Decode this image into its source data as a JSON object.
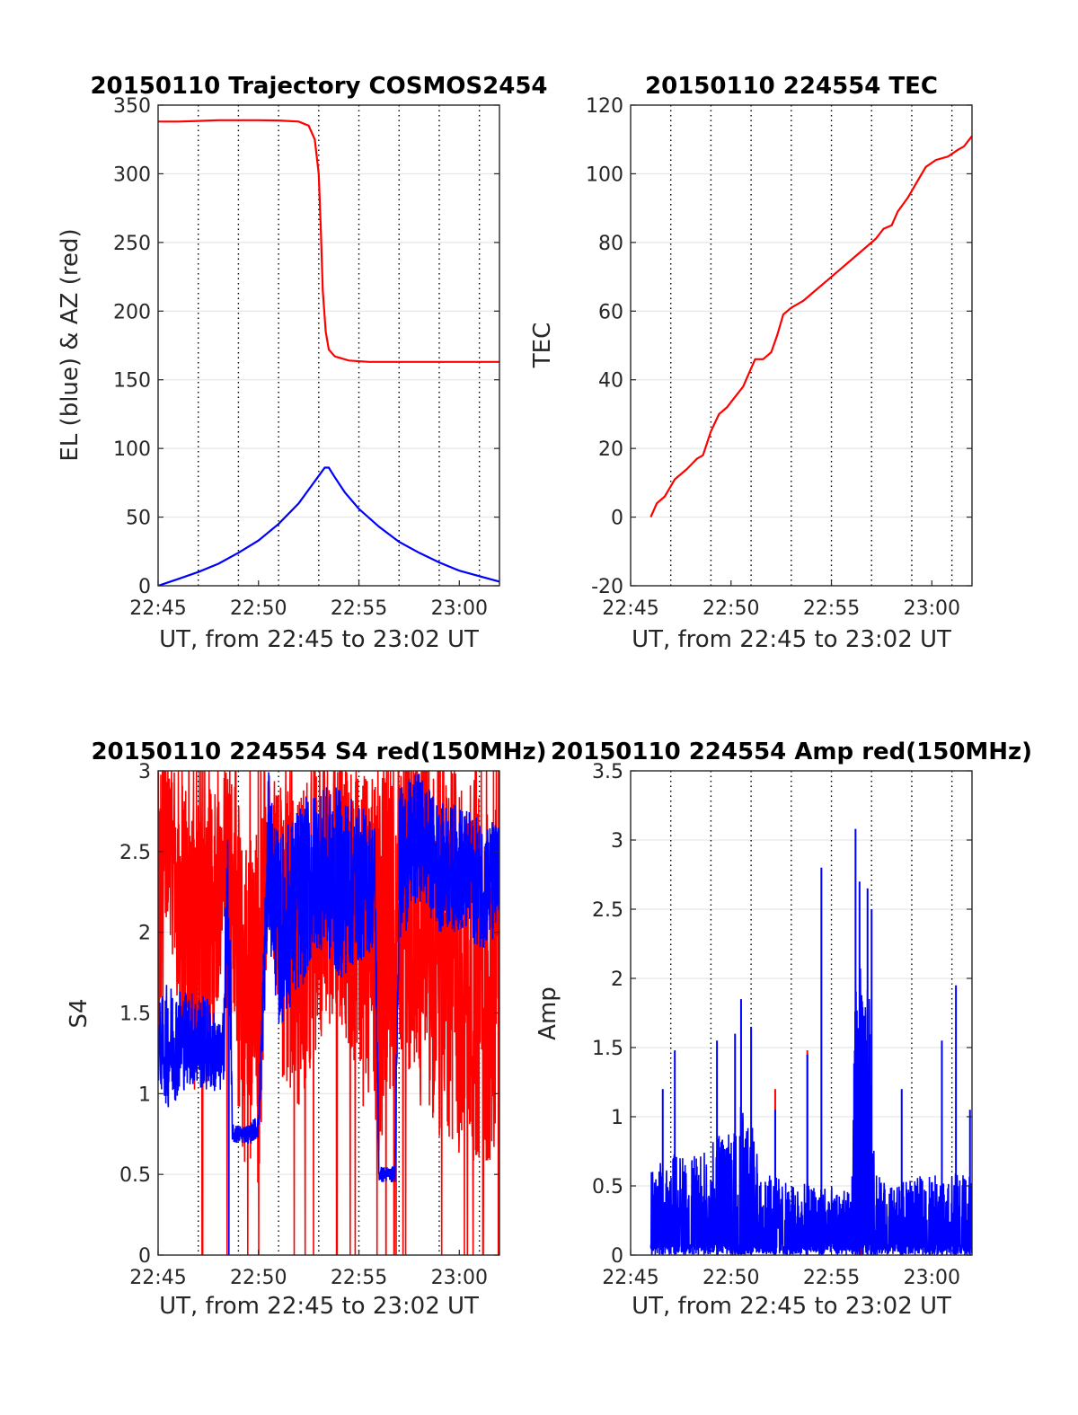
{
  "figure": {
    "background": "#ffffff",
    "grid_color": "#000000",
    "axis_color": "#262626"
  },
  "chart_data": [
    {
      "id": "trajectory",
      "type": "line",
      "title": "20150110 Trajectory COSMOS2454",
      "xlabel": "UT, from 22:45 to 23:02 UT",
      "ylabel": "EL (blue) & AZ (red)",
      "xlim_minutes": [
        0,
        17
      ],
      "xticks": [
        {
          "label": "22:45",
          "minute": 0
        },
        {
          "label": "22:50",
          "minute": 5
        },
        {
          "label": "22:55",
          "minute": 10
        },
        {
          "label": "23:00",
          "minute": 15
        }
      ],
      "vgrid_minutes": [
        2,
        4,
        6,
        8,
        10,
        12,
        14,
        16
      ],
      "ylim": [
        0,
        350
      ],
      "yticks": [
        0,
        50,
        100,
        150,
        200,
        250,
        300,
        350
      ],
      "series": [
        {
          "color": "#ff0000",
          "points": [
            [
              0.0,
              338
            ],
            [
              1.0,
              338
            ],
            [
              2.0,
              338.5
            ],
            [
              3.0,
              339
            ],
            [
              4.0,
              339
            ],
            [
              5.0,
              339
            ],
            [
              6.0,
              338.8
            ],
            [
              7.0,
              338
            ],
            [
              7.5,
              335
            ],
            [
              7.8,
              325
            ],
            [
              8.0,
              300
            ],
            [
              8.1,
              260
            ],
            [
              8.2,
              215
            ],
            [
              8.35,
              185
            ],
            [
              8.5,
              172
            ],
            [
              8.8,
              167
            ],
            [
              9.5,
              164
            ],
            [
              10.5,
              163
            ],
            [
              12.0,
              163
            ],
            [
              14.0,
              163
            ],
            [
              17.0,
              163
            ]
          ]
        },
        {
          "color": "#0000ff",
          "points": [
            [
              0.0,
              0
            ],
            [
              1.0,
              5
            ],
            [
              2.0,
              10
            ],
            [
              3.0,
              16
            ],
            [
              4.0,
              24
            ],
            [
              5.0,
              33
            ],
            [
              6.0,
              45
            ],
            [
              7.0,
              60
            ],
            [
              7.6,
              72
            ],
            [
              8.0,
              80
            ],
            [
              8.3,
              86
            ],
            [
              8.5,
              86
            ],
            [
              8.8,
              79
            ],
            [
              9.3,
              68
            ],
            [
              10.0,
              56
            ],
            [
              11.0,
              43
            ],
            [
              12.0,
              32
            ],
            [
              13.0,
              24
            ],
            [
              14.0,
              17
            ],
            [
              15.0,
              11
            ],
            [
              16.0,
              7
            ],
            [
              17.0,
              3
            ]
          ]
        }
      ]
    },
    {
      "id": "tec",
      "type": "line",
      "title": "20150110 224554 TEC",
      "xlabel": "UT, from 22:45 to 23:02 UT",
      "ylabel": "TEC",
      "xlim_minutes": [
        0,
        17
      ],
      "xticks": [
        {
          "label": "22:45",
          "minute": 0
        },
        {
          "label": "22:50",
          "minute": 5
        },
        {
          "label": "22:55",
          "minute": 10
        },
        {
          "label": "23:00",
          "minute": 15
        }
      ],
      "vgrid_minutes": [
        2,
        4,
        6,
        8,
        10,
        12,
        14,
        16
      ],
      "ylim": [
        -20,
        120
      ],
      "yticks": [
        -20,
        0,
        20,
        40,
        60,
        80,
        100,
        120
      ],
      "series": [
        {
          "color": "#ff0000",
          "points": [
            [
              1.0,
              0
            ],
            [
              1.3,
              4
            ],
            [
              1.7,
              6
            ],
            [
              2.2,
              11
            ],
            [
              2.8,
              14
            ],
            [
              3.3,
              17
            ],
            [
              3.6,
              18
            ],
            [
              4.0,
              25
            ],
            [
              4.4,
              30
            ],
            [
              4.8,
              32
            ],
            [
              5.2,
              35
            ],
            [
              5.6,
              38
            ],
            [
              5.9,
              42
            ],
            [
              6.2,
              46
            ],
            [
              6.6,
              46
            ],
            [
              7.0,
              48
            ],
            [
              7.3,
              53
            ],
            [
              7.6,
              59
            ],
            [
              8.0,
              61
            ],
            [
              8.6,
              63
            ],
            [
              9.2,
              66
            ],
            [
              9.8,
              69
            ],
            [
              10.4,
              72
            ],
            [
              11.0,
              75
            ],
            [
              11.6,
              78
            ],
            [
              12.2,
              81
            ],
            [
              12.6,
              84
            ],
            [
              13.0,
              85
            ],
            [
              13.3,
              89
            ],
            [
              13.8,
              93
            ],
            [
              14.3,
              98
            ],
            [
              14.7,
              102
            ],
            [
              15.2,
              104
            ],
            [
              15.8,
              105
            ],
            [
              16.3,
              107
            ],
            [
              16.6,
              108
            ],
            [
              17.0,
              111
            ]
          ]
        }
      ]
    },
    {
      "id": "s4",
      "type": "line",
      "title": "20150110 224554 S4 red(150MHz)",
      "xlabel": "UT, from 22:45 to 23:02 UT",
      "ylabel": "S4",
      "xlim_minutes": [
        0,
        17
      ],
      "xticks": [
        {
          "label": "22:45",
          "minute": 0
        },
        {
          "label": "22:50",
          "minute": 5
        },
        {
          "label": "22:55",
          "minute": 10
        },
        {
          "label": "23:00",
          "minute": 15
        }
      ],
      "vgrid_minutes": [
        2,
        4,
        6,
        8,
        10,
        12,
        14,
        16
      ],
      "ylim": [
        0,
        3
      ],
      "yticks": [
        0,
        0.5,
        1,
        1.5,
        2,
        2.5,
        3
      ],
      "series": [
        {
          "color": "#ff0000",
          "noise_profile": [
            [
              0.0,
              1.9,
              1.1
            ],
            [
              0.5,
              2.6,
              0.5
            ],
            [
              1.2,
              2.2,
              0.9
            ],
            [
              2.2,
              1.8,
              1.0
            ],
            [
              3.3,
              2.5,
              0.6
            ],
            [
              3.7,
              2.2,
              0.9
            ],
            [
              4.2,
              1.6,
              1.0
            ],
            [
              5.0,
              1.5,
              1.2
            ],
            [
              5.5,
              2.6,
              0.4
            ],
            [
              6.2,
              2.0,
              0.9
            ],
            [
              7.0,
              1.9,
              1.0
            ],
            [
              8.0,
              2.2,
              0.9
            ],
            [
              9.0,
              2.3,
              0.8
            ],
            [
              10.0,
              2.0,
              1.0
            ],
            [
              11.0,
              1.8,
              1.2
            ],
            [
              12.0,
              2.2,
              1.0
            ],
            [
              13.5,
              2.0,
              1.2
            ],
            [
              15.0,
              1.8,
              1.2
            ],
            [
              17.0,
              1.7,
              1.2
            ]
          ]
        },
        {
          "color": "#0000ff",
          "noise_profile": [
            [
              0.0,
              1.3,
              0.25
            ],
            [
              0.5,
              1.3,
              0.4
            ],
            [
              1.5,
              1.35,
              0.3
            ],
            [
              2.5,
              1.3,
              0.3
            ],
            [
              3.2,
              1.2,
              0.2
            ],
            [
              3.5,
              2.2,
              0.8
            ],
            [
              3.7,
              0.75,
              0.06
            ],
            [
              4.5,
              0.75,
              0.06
            ],
            [
              5.0,
              0.8,
              0.08
            ],
            [
              5.5,
              2.5,
              0.5
            ],
            [
              6.0,
              2.0,
              0.6
            ],
            [
              7.0,
              2.2,
              0.6
            ],
            [
              8.0,
              2.4,
              0.5
            ],
            [
              9.0,
              2.3,
              0.6
            ],
            [
              10.0,
              2.3,
              0.5
            ],
            [
              10.8,
              2.3,
              0.4
            ],
            [
              11.0,
              0.5,
              0.05
            ],
            [
              11.8,
              0.5,
              0.05
            ],
            [
              12.0,
              2.4,
              0.5
            ],
            [
              13.0,
              2.6,
              0.4
            ],
            [
              14.0,
              2.4,
              0.4
            ],
            [
              15.0,
              2.4,
              0.4
            ],
            [
              16.0,
              2.3,
              0.4
            ],
            [
              17.0,
              2.3,
              0.4
            ]
          ]
        }
      ]
    },
    {
      "id": "amp",
      "type": "line",
      "title": "20150110 224554 Amp red(150MHz)",
      "xlabel": "UT, from 22:45 to 23:02 UT",
      "ylabel": "Amp",
      "xlim_minutes": [
        0,
        17
      ],
      "xticks": [
        {
          "label": "22:45",
          "minute": 0
        },
        {
          "label": "22:50",
          "minute": 5
        },
        {
          "label": "22:55",
          "minute": 10
        },
        {
          "label": "23:00",
          "minute": 15
        }
      ],
      "vgrid_minutes": [
        2,
        4,
        6,
        8,
        10,
        12,
        14,
        16
      ],
      "ylim": [
        0,
        3.5
      ],
      "yticks": [
        0,
        0.5,
        1,
        1.5,
        2,
        2.5,
        3,
        3.5
      ],
      "series": [
        {
          "color": "#ff0000",
          "spikes": [
            [
              7.2,
              1.2
            ],
            [
              8.8,
              1.48
            ],
            [
              11.3,
              0.25
            ],
            [
              11.5,
              0.2
            ]
          ]
        },
        {
          "color": "#0000ff",
          "noise_profile": [
            [
              1.0,
              0.6
            ],
            [
              2.0,
              0.75
            ],
            [
              3.0,
              0.7
            ],
            [
              4.0,
              0.8
            ],
            [
              5.0,
              1.0
            ],
            [
              5.5,
              1.2
            ],
            [
              6.0,
              1.0
            ],
            [
              6.5,
              0.55
            ],
            [
              7.0,
              0.6
            ],
            [
              8.0,
              0.5
            ],
            [
              9.0,
              0.55
            ],
            [
              10.0,
              0.5
            ],
            [
              11.0,
              0.45
            ],
            [
              11.2,
              2.0
            ],
            [
              11.8,
              2.2
            ],
            [
              12.2,
              0.6
            ],
            [
              13.0,
              0.5
            ],
            [
              14.0,
              0.55
            ],
            [
              15.0,
              0.6
            ],
            [
              16.0,
              0.6
            ],
            [
              17.0,
              0.6
            ]
          ],
          "spikes": [
            [
              1.6,
              1.2
            ],
            [
              2.2,
              1.48
            ],
            [
              4.3,
              1.55
            ],
            [
              5.2,
              1.6
            ],
            [
              5.5,
              1.85
            ],
            [
              6.0,
              1.65
            ],
            [
              7.2,
              1.05
            ],
            [
              8.8,
              1.45
            ],
            [
              9.5,
              2.8
            ],
            [
              11.2,
              3.08
            ],
            [
              11.4,
              2.7
            ],
            [
              11.8,
              2.65
            ],
            [
              12.0,
              2.5
            ],
            [
              13.5,
              1.2
            ],
            [
              15.5,
              1.55
            ],
            [
              16.2,
              1.95
            ],
            [
              16.9,
              1.05
            ]
          ]
        }
      ]
    }
  ]
}
